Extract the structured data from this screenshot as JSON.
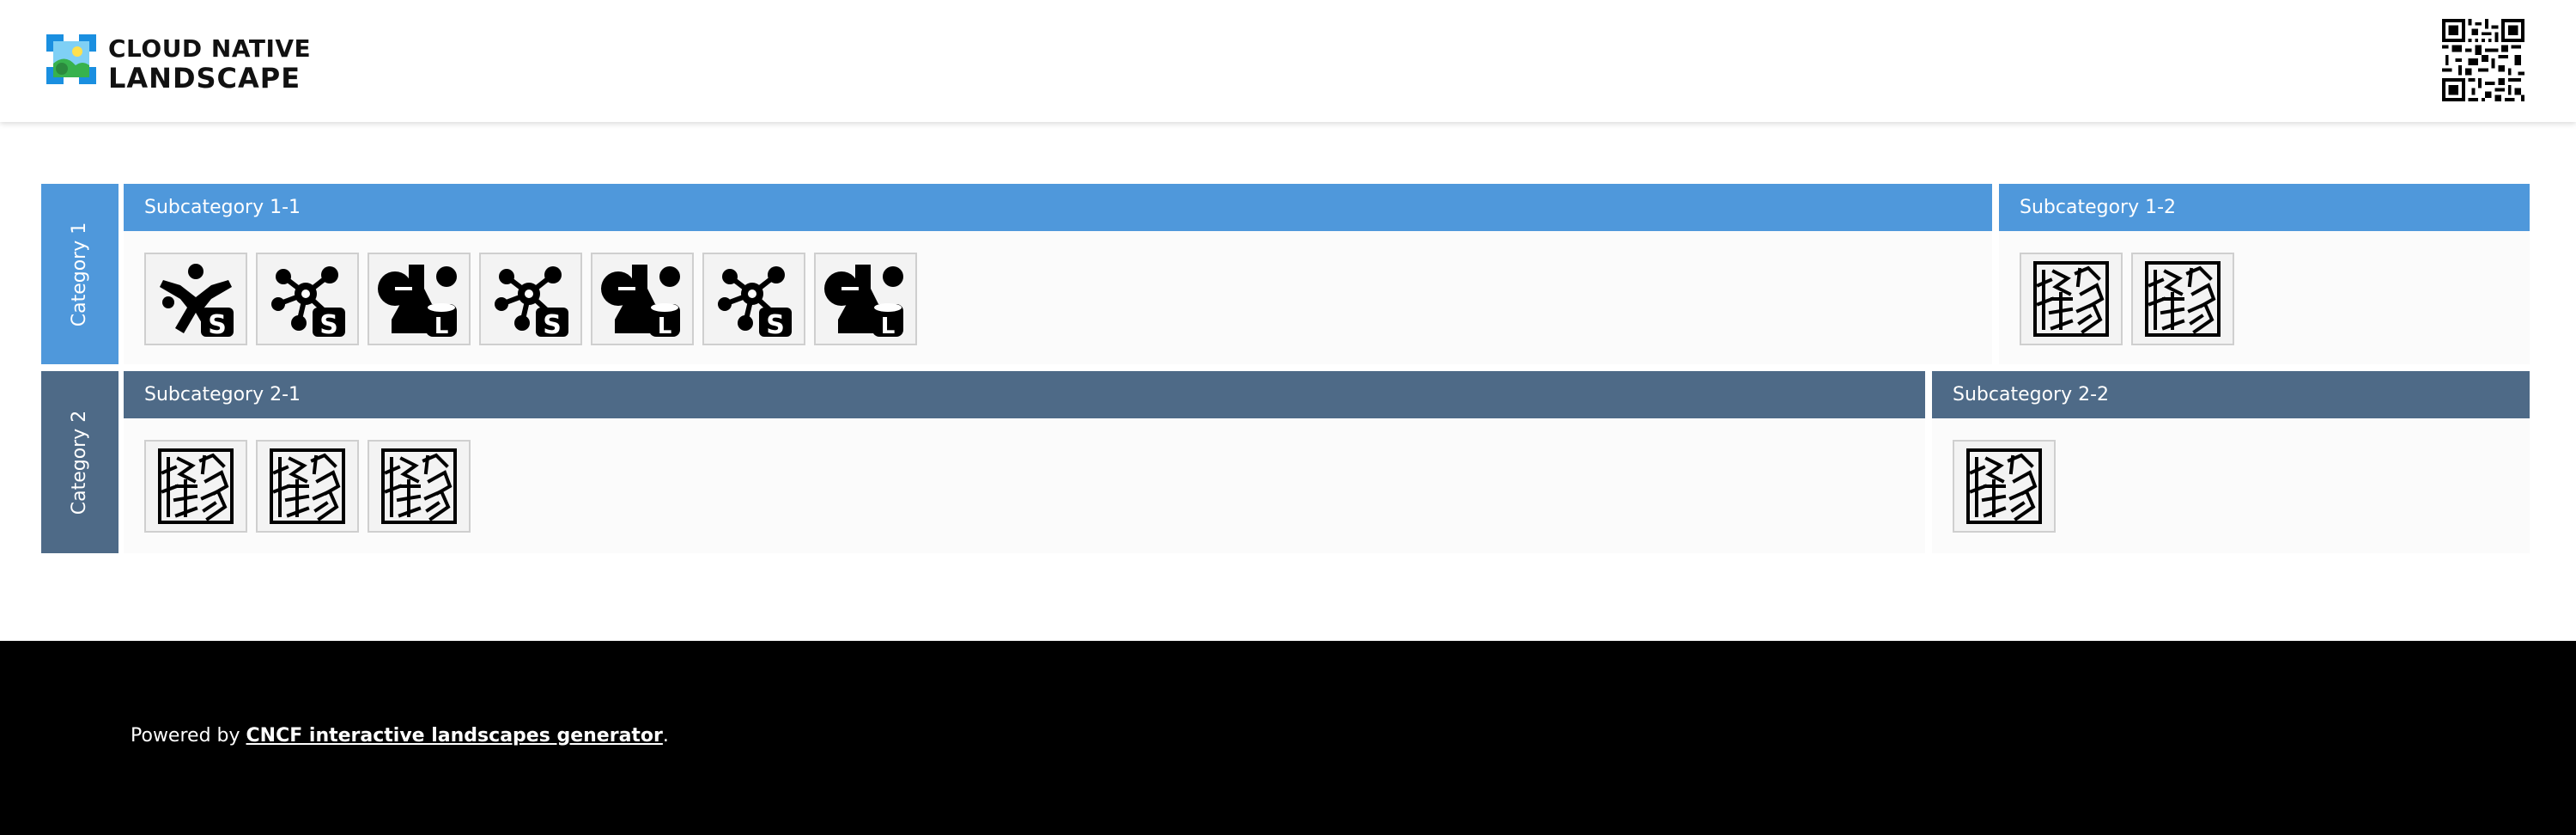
{
  "header": {
    "logo_line1": "CLOUD NATIVE",
    "logo_line2": "LANDSCAPE",
    "logo_icon": "landscape-logo-icon",
    "qr_icon": "qr-code-icon"
  },
  "colors": {
    "category1": "#4f98db",
    "category2": "#4e6a87",
    "footer_bg": "#000000",
    "item_bg": "#f3f3f3"
  },
  "categories": [
    {
      "label": "Category 1",
      "subcategories": [
        {
          "title": "Subcategory 1-1",
          "items": [
            {
              "icon": "cross-people-icon",
              "badge": "S"
            },
            {
              "icon": "network-nodes-icon",
              "badge": "S"
            },
            {
              "icon": "flask-icon",
              "badge": "L"
            },
            {
              "icon": "network-nodes-icon",
              "badge": "S"
            },
            {
              "icon": "flask-icon",
              "badge": "L"
            },
            {
              "icon": "network-nodes-icon",
              "badge": "S"
            },
            {
              "icon": "flask-icon",
              "badge": "L"
            }
          ]
        },
        {
          "title": "Subcategory 1-2",
          "items": [
            {
              "icon": "seal-stamp-icon"
            },
            {
              "icon": "seal-stamp-icon"
            }
          ]
        }
      ]
    },
    {
      "label": "Category 2",
      "subcategories": [
        {
          "title": "Subcategory 2-1",
          "items": [
            {
              "icon": "seal-stamp-icon"
            },
            {
              "icon": "seal-stamp-icon"
            },
            {
              "icon": "seal-stamp-icon"
            }
          ]
        },
        {
          "title": "Subcategory 2-2",
          "items": [
            {
              "icon": "seal-stamp-icon"
            }
          ]
        }
      ]
    }
  ],
  "footer": {
    "prefix": "Powered by ",
    "link_text": "CNCF interactive landscapes generator",
    "suffix": "."
  }
}
